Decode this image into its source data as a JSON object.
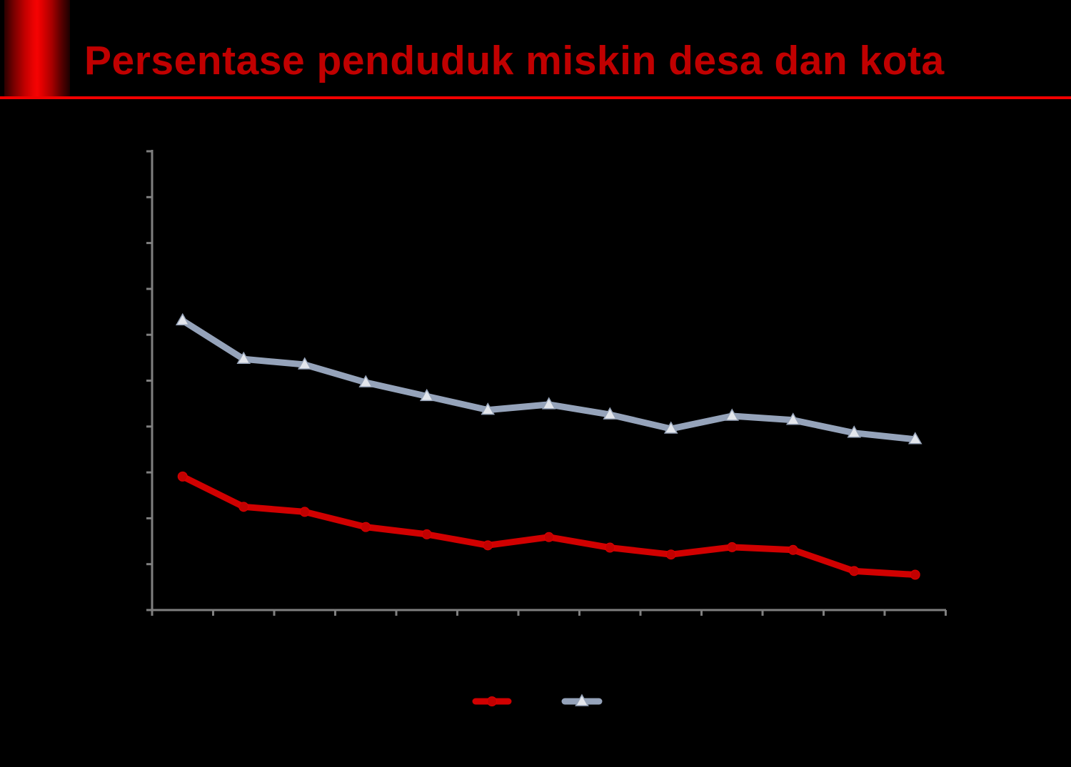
{
  "header": {
    "title": "Persentase penduduk miskin desa dan kota",
    "title_color": "#C00000",
    "underline_color": "#F10000",
    "accent_bar_color": "#E60000"
  },
  "chart_data": {
    "type": "line",
    "title": "",
    "xlabel": "",
    "ylabel": "",
    "notes": "axis tick labels and legend labels are not visible (rendered black on black); values estimated in y-axis tick units from gridline ticks",
    "axes": {
      "color": "#7F7F7F",
      "y": {
        "min": 0,
        "max": 10,
        "tick_step": 1,
        "tick_count": 11,
        "tick_labels_visible": false
      },
      "x": {
        "tick_count": 14,
        "category_count": 13,
        "tick_labels_visible": false
      }
    },
    "series": [
      {
        "id": "gray-triangle-series",
        "label": "",
        "marker": "triangle",
        "line_color": "#95A3BA",
        "marker_fill": "#E3E6EC",
        "marker_stroke": "#97A4B9",
        "values": [
          6.31,
          5.47,
          5.35,
          4.96,
          4.66,
          4.36,
          4.48,
          4.26,
          3.95,
          4.23,
          4.14,
          3.86,
          3.72
        ]
      },
      {
        "id": "red-circle-series",
        "label": "",
        "marker": "circle",
        "line_color": "#D10000",
        "marker_fill": "#C20000",
        "marker_stroke": "#DD0000",
        "values": [
          2.91,
          2.25,
          2.14,
          1.81,
          1.65,
          1.41,
          1.59,
          1.36,
          1.21,
          1.37,
          1.31,
          0.85,
          0.77
        ]
      }
    ],
    "legend": {
      "position": "bottom-center",
      "entries": [
        {
          "marker": "circle",
          "color": "#D10000",
          "label": ""
        },
        {
          "marker": "triangle",
          "color": "#95A3BA",
          "label": ""
        }
      ]
    }
  }
}
